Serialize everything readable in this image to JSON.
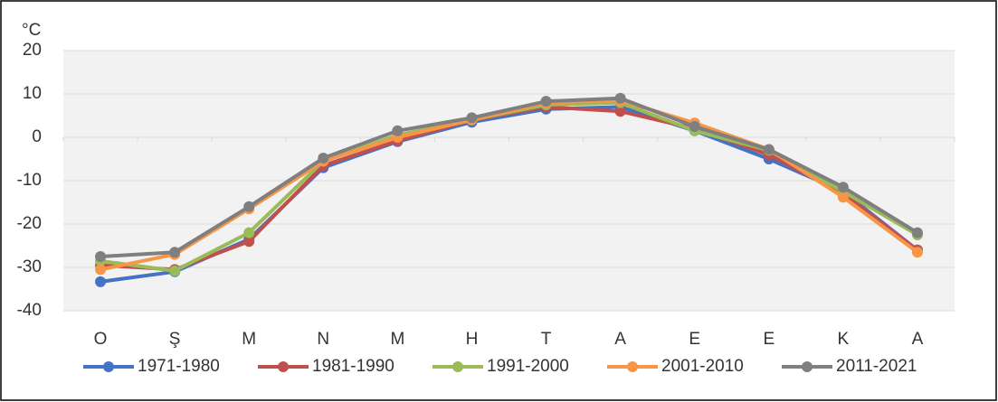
{
  "chart_data": {
    "type": "line",
    "y_label": "°C",
    "categories": [
      "O",
      "Ş",
      "M",
      "N",
      "M",
      "H",
      "T",
      "A",
      "E",
      "E",
      "K",
      "A"
    ],
    "ylim": [
      -40,
      20
    ],
    "yticks": [
      -40,
      -30,
      -20,
      -10,
      0,
      10,
      20
    ],
    "grid": true,
    "legend": "bottom",
    "series": [
      {
        "name": "1971-1980",
        "color": "#4472c4",
        "values": [
          -33.3,
          -31,
          -23.5,
          -7,
          -1,
          3.5,
          6.5,
          7,
          1.5,
          -5,
          -12.5,
          -26
        ]
      },
      {
        "name": "1981-1990",
        "color": "#c0504d",
        "values": [
          -29.5,
          -30.5,
          -24,
          -6.5,
          -0.8,
          4,
          7,
          6,
          2,
          -4,
          -13,
          -26
        ]
      },
      {
        "name": "1991-2000",
        "color": "#9bbb59",
        "values": [
          -28.5,
          -30.8,
          -22,
          -5.5,
          0.5,
          4,
          7.5,
          8,
          1.5,
          -3,
          -12.5,
          -22.5
        ]
      },
      {
        "name": "2001-2010",
        "color": "#f79646",
        "values": [
          -30.5,
          -27,
          -16.5,
          -5.5,
          0,
          4,
          8,
          8.5,
          3.3,
          -2.8,
          -13.8,
          -26.5
        ]
      },
      {
        "name": "2011-2021",
        "color": "#7f7f7f",
        "values": [
          -27.5,
          -26.5,
          -16,
          -4.8,
          1.5,
          4.5,
          8.3,
          9,
          2.5,
          -2.8,
          -11.5,
          -22
        ]
      }
    ]
  }
}
